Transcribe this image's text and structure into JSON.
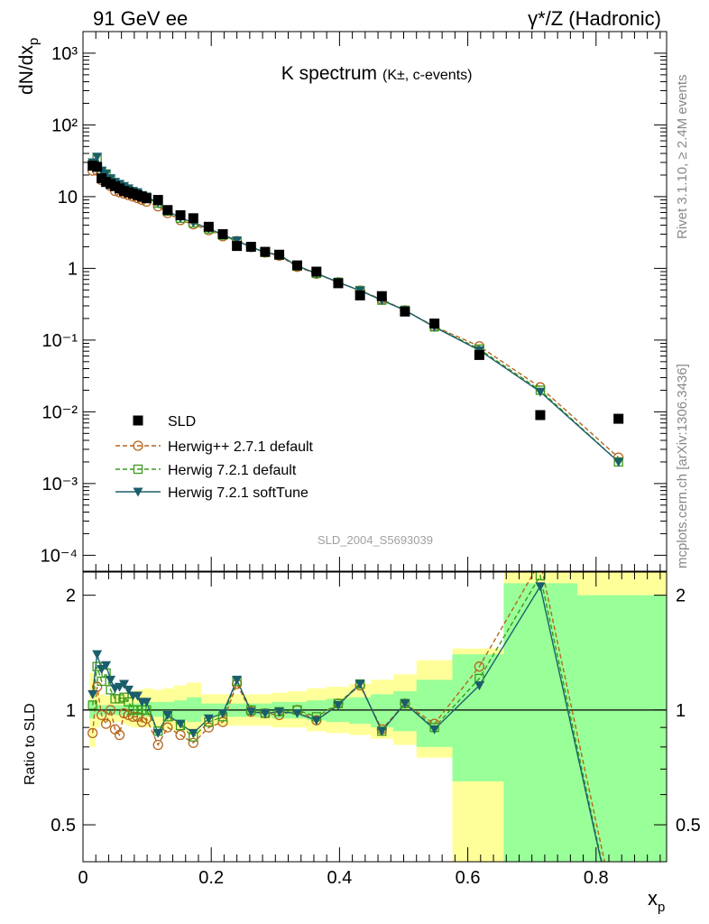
{
  "header": {
    "left": "91 GeV ee",
    "right": "γ*/Z (Hadronic)"
  },
  "side_text": {
    "rivet": "Rivet 3.1.10, ≥ 2.4M events",
    "mcplots": "mcplots.cern.ch [arXiv:1306.3436]"
  },
  "watermark": "SLD_2004_S5693039",
  "colors": {
    "sld": "#000000",
    "herwigpp": "#b5651d",
    "herwig721": "#3a9b1a",
    "softtune": "#1b5e6b",
    "band_yellow": "#ffff99",
    "band_green": "#99ff99"
  },
  "chart_data": [
    {
      "type": "scatter",
      "title": "K spectrum",
      "title_suffix": "(K±, c-events)",
      "ylabel": "dN/dx_p",
      "yscale": "log",
      "xlim": [
        0,
        0.91
      ],
      "ylim": [
        6e-05,
        2000
      ],
      "y_tick_labels": [
        "10⁻⁴",
        "10⁻³",
        "10⁻²",
        "10⁻¹",
        "1",
        "10",
        "10²",
        "10³"
      ],
      "legend_position": "bottom-left",
      "legend": [
        "SLD",
        "Herwig++ 2.7.1 default",
        "Herwig 7.2.1 default",
        "Herwig 7.2.1 softTune"
      ],
      "x": [
        0.015,
        0.022,
        0.029,
        0.036,
        0.043,
        0.05,
        0.057,
        0.064,
        0.071,
        0.078,
        0.085,
        0.092,
        0.099,
        0.117,
        0.132,
        0.152,
        0.172,
        0.196,
        0.218,
        0.24,
        0.262,
        0.284,
        0.306,
        0.334,
        0.364,
        0.398,
        0.432,
        0.466,
        0.502,
        0.548,
        0.618,
        0.713,
        0.835
      ],
      "series": [
        {
          "name": "SLD",
          "style": "marker",
          "values": [
            27,
            26,
            18,
            16,
            15,
            14,
            13,
            12,
            11.5,
            11,
            10.5,
            10,
            9.5,
            9,
            6.5,
            5.5,
            5.0,
            3.8,
            3.0,
            2.05,
            2.0,
            1.7,
            1.55,
            1.1,
            0.9,
            0.62,
            0.42,
            0.41,
            0.25,
            0.17,
            0.062,
            0.009,
            0.008
          ]
        },
        {
          "name": "Herwig++ 2.7.1 default",
          "style": "dashed-circle",
          "values": [
            23,
            23,
            17,
            16,
            14,
            12,
            11.5,
            11,
            10.5,
            10,
            9.5,
            9,
            8.5,
            7.3,
            5.9,
            4.7,
            4.1,
            3.4,
            2.8,
            2.4,
            1.98,
            1.66,
            1.5,
            1.05,
            0.84,
            0.64,
            0.49,
            0.37,
            0.26,
            0.155,
            0.082,
            0.022,
            0.0023
          ]
        },
        {
          "name": "Herwig 7.2.1 default",
          "style": "dashed-square",
          "values": [
            28,
            34,
            22,
            20,
            17,
            15,
            14,
            13,
            12,
            11,
            10.5,
            10,
            9.5,
            8.1,
            6.3,
            5.0,
            4.3,
            3.55,
            2.9,
            2.4,
            1.99,
            1.67,
            1.54,
            1.08,
            0.85,
            0.64,
            0.49,
            0.36,
            0.26,
            0.153,
            0.075,
            0.02,
            0.002
          ]
        },
        {
          "name": "Herwig 7.2.1 softTune",
          "style": "solid-triangle",
          "values": [
            30,
            36,
            23,
            21,
            18,
            16,
            15,
            14,
            13,
            12,
            11.5,
            10.5,
            10,
            8.2,
            6.3,
            5.05,
            4.35,
            3.6,
            2.95,
            2.45,
            1.98,
            1.67,
            1.54,
            1.08,
            0.85,
            0.64,
            0.49,
            0.36,
            0.26,
            0.152,
            0.072,
            0.019,
            0.002
          ]
        }
      ]
    },
    {
      "type": "line",
      "ylabel": "Ratio to SLD",
      "xlabel": "x_p",
      "xlim": [
        0,
        0.91
      ],
      "ylim": [
        0.4,
        2.3
      ],
      "x_tick_labels": [
        "0",
        "0.2",
        "0.4",
        "0.6",
        "0.8"
      ],
      "y_tick_labels": [
        "0.5",
        "1",
        "2"
      ],
      "reference_line": 1,
      "x": [
        0.015,
        0.022,
        0.029,
        0.036,
        0.043,
        0.05,
        0.057,
        0.064,
        0.071,
        0.078,
        0.085,
        0.092,
        0.099,
        0.117,
        0.132,
        0.152,
        0.172,
        0.196,
        0.218,
        0.24,
        0.262,
        0.284,
        0.306,
        0.334,
        0.364,
        0.398,
        0.432,
        0.466,
        0.502,
        0.548,
        0.618,
        0.713,
        0.835
      ],
      "bands": {
        "edges": [
          0.01,
          0.0185,
          0.0255,
          0.0325,
          0.0395,
          0.0465,
          0.0535,
          0.0605,
          0.0675,
          0.0745,
          0.0815,
          0.0885,
          0.0955,
          0.108,
          0.125,
          0.142,
          0.162,
          0.184,
          0.207,
          0.229,
          0.251,
          0.273,
          0.295,
          0.32,
          0.349,
          0.379,
          0.415,
          0.449,
          0.484,
          0.52,
          0.576,
          0.656,
          0.77,
          0.91
        ],
        "yellow": [
          [
            0.8,
            1.25
          ],
          [
            0.9,
            1.12
          ],
          [
            0.92,
            1.1
          ],
          [
            0.93,
            1.09
          ],
          [
            0.93,
            1.09
          ],
          [
            0.93,
            1.09
          ],
          [
            0.93,
            1.09
          ],
          [
            0.92,
            1.1
          ],
          [
            0.91,
            1.11
          ],
          [
            0.9,
            1.12
          ],
          [
            0.9,
            1.13
          ],
          [
            0.9,
            1.13
          ],
          [
            0.9,
            1.14
          ],
          [
            0.9,
            1.13
          ],
          [
            0.89,
            1.14
          ],
          [
            0.88,
            1.16
          ],
          [
            0.86,
            1.18
          ],
          [
            0.91,
            1.1
          ],
          [
            0.91,
            1.1
          ],
          [
            0.91,
            1.1
          ],
          [
            0.91,
            1.1
          ],
          [
            0.91,
            1.1
          ],
          [
            0.9,
            1.11
          ],
          [
            0.9,
            1.12
          ],
          [
            0.88,
            1.14
          ],
          [
            0.87,
            1.15
          ],
          [
            0.86,
            1.17
          ],
          [
            0.84,
            1.2
          ],
          [
            0.81,
            1.24
          ],
          [
            0.75,
            1.35
          ],
          [
            0.4,
            1.45
          ],
          [
            0.4,
            2.3
          ],
          [
            0.4,
            2.3
          ]
        ],
        "green": [
          [
            0.95,
            1.06
          ],
          [
            0.97,
            1.03
          ],
          [
            0.97,
            1.03
          ],
          [
            0.97,
            1.03
          ],
          [
            0.97,
            1.03
          ],
          [
            0.97,
            1.03
          ],
          [
            0.97,
            1.03
          ],
          [
            0.97,
            1.03
          ],
          [
            0.96,
            1.04
          ],
          [
            0.96,
            1.04
          ],
          [
            0.96,
            1.04
          ],
          [
            0.96,
            1.04
          ],
          [
            0.96,
            1.05
          ],
          [
            0.96,
            1.05
          ],
          [
            0.95,
            1.05
          ],
          [
            0.94,
            1.06
          ],
          [
            0.93,
            1.08
          ],
          [
            0.96,
            1.04
          ],
          [
            0.96,
            1.04
          ],
          [
            0.96,
            1.04
          ],
          [
            0.96,
            1.04
          ],
          [
            0.96,
            1.04
          ],
          [
            0.95,
            1.05
          ],
          [
            0.95,
            1.05
          ],
          [
            0.94,
            1.06
          ],
          [
            0.93,
            1.07
          ],
          [
            0.92,
            1.08
          ],
          [
            0.9,
            1.1
          ],
          [
            0.88,
            1.12
          ],
          [
            0.8,
            1.2
          ],
          [
            0.65,
            1.4
          ],
          [
            0.4,
            2.15
          ],
          [
            0.4,
            2.0
          ]
        ]
      },
      "series": [
        {
          "name": "Herwig++ 2.7.1 default",
          "values": [
            0.87,
            1.15,
            0.97,
            0.92,
            1.0,
            0.89,
            0.86,
            0.98,
            0.97,
            0.96,
            0.96,
            0.93,
            0.95,
            0.81,
            0.9,
            0.86,
            0.82,
            0.9,
            0.93,
            1.17,
            0.99,
            0.98,
            0.97,
            1.0,
            0.94,
            1.04,
            1.16,
            0.89,
            1.04,
            0.92,
            1.3,
            2.45,
            0.27
          ]
        },
        {
          "name": "Herwig 7.2.1 default",
          "values": [
            1.03,
            1.3,
            1.19,
            1.25,
            1.13,
            1.07,
            1.07,
            1.08,
            1.05,
            1.0,
            1.0,
            1.0,
            1.0,
            0.88,
            0.96,
            0.91,
            0.85,
            0.93,
            0.96,
            1.19,
            1.0,
            0.98,
            0.99,
            1.0,
            0.96,
            1.04,
            1.17,
            0.88,
            1.04,
            0.9,
            1.21,
            2.25,
            0.25
          ]
        },
        {
          "name": "Herwig 7.2.1 softTune",
          "values": [
            1.1,
            1.4,
            1.28,
            1.31,
            1.2,
            1.14,
            1.15,
            1.17,
            1.13,
            1.09,
            1.09,
            1.05,
            1.05,
            0.87,
            0.97,
            0.92,
            0.87,
            0.95,
            0.98,
            1.2,
            0.99,
            0.98,
            0.99,
            0.98,
            0.94,
            1.03,
            1.17,
            0.88,
            1.04,
            0.89,
            1.16,
            2.11,
            0.25
          ]
        }
      ]
    }
  ]
}
